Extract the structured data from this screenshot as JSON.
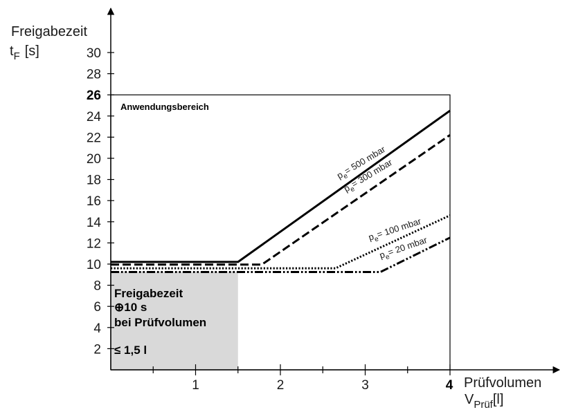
{
  "chart_data": {
    "type": "line",
    "ylabel_line1": "Freigabezeit",
    "ylabel_line2_main": "t",
    "ylabel_line2_sub": "F",
    "ylabel_line2_unit": "[s]",
    "xlabel_line1": "Prüfvolumen",
    "xlabel_line2_main": "V",
    "xlabel_line2_sub": "Prüf",
    "xlabel_line2_unit": "[l]",
    "xlim": [
      0,
      4
    ],
    "ylim": [
      0,
      32
    ],
    "y_ticks": [
      "2",
      "4",
      "6",
      "8",
      "10",
      "12",
      "14",
      "16",
      "18",
      "20",
      "22",
      "24",
      "28",
      "30"
    ],
    "y_tick_bold": "26",
    "x_ticks": [
      "1",
      "2",
      "3"
    ],
    "x_tick_bold": "4",
    "application_area": {
      "label": "Anwendungsbereich",
      "x_max": 4,
      "y_max": 26
    },
    "shaded_area": {
      "x_max": 1.5,
      "y_max": 9.3,
      "lines": [
        "Freigabezeit",
        "⊕10 s",
        "bei Prüfvolumen",
        "≤ 1,5 l"
      ]
    },
    "series": [
      {
        "prefix": "p",
        "sub": "e",
        "rest": "= 500 mbar",
        "style": "solid",
        "x": [
          0,
          1.5,
          4
        ],
        "y": [
          10.2,
          10.2,
          24.5
        ]
      },
      {
        "prefix": "p",
        "sub": "e",
        "rest": "= 300 mbar",
        "style": "dashed",
        "x": [
          0,
          1.78,
          4
        ],
        "y": [
          9.95,
          9.95,
          22.2
        ]
      },
      {
        "prefix": "p",
        "sub": "e",
        "rest": "= 100 mbar",
        "style": "dotted",
        "x": [
          0,
          2.65,
          4
        ],
        "y": [
          9.6,
          9.6,
          14.6
        ]
      },
      {
        "prefix": "p",
        "sub": "e",
        "rest": "= 20 mbar",
        "style": "dashdotdot",
        "x": [
          0,
          3.18,
          4
        ],
        "y": [
          9.25,
          9.25,
          12.5
        ]
      }
    ]
  }
}
